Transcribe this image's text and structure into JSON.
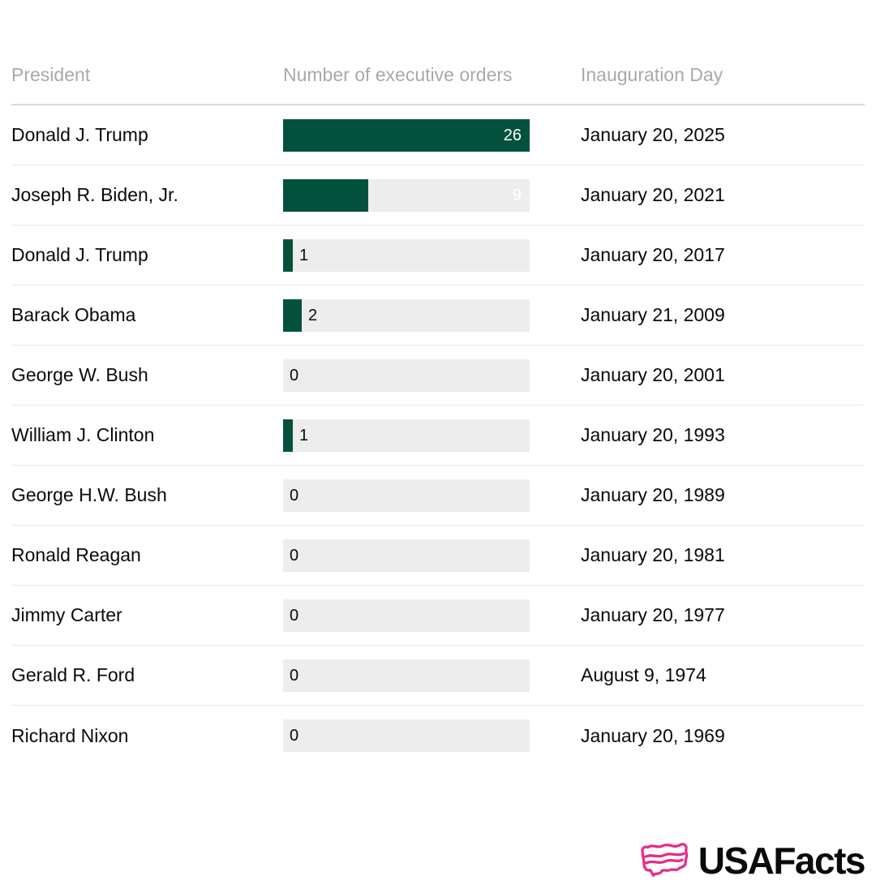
{
  "table": {
    "columns": {
      "president": "President",
      "orders": "Number of executive orders",
      "inauguration": "Inauguration Day"
    },
    "rows": [
      {
        "president": "Donald J. Trump",
        "orders": 26,
        "inauguration": "January 20, 2025"
      },
      {
        "president": "Joseph R. Biden, Jr.",
        "orders": 9,
        "inauguration": "January 20, 2021"
      },
      {
        "president": "Donald J. Trump",
        "orders": 1,
        "inauguration": "January 20, 2017"
      },
      {
        "president": "Barack Obama",
        "orders": 2,
        "inauguration": "January 21, 2009"
      },
      {
        "president": "George W. Bush",
        "orders": 0,
        "inauguration": "January 20, 2001"
      },
      {
        "president": "William J. Clinton",
        "orders": 1,
        "inauguration": "January 20, 1993"
      },
      {
        "president": "George H.W. Bush",
        "orders": 0,
        "inauguration": "January 20, 1989"
      },
      {
        "president": "Ronald Reagan",
        "orders": 0,
        "inauguration": "January 20, 1981"
      },
      {
        "president": "Jimmy Carter",
        "orders": 0,
        "inauguration": "January 20, 1977"
      },
      {
        "president": "Gerald R. Ford",
        "orders": 0,
        "inauguration": "August 9, 1974"
      },
      {
        "president": "Richard Nixon",
        "orders": 0,
        "inauguration": "January 20, 1969"
      }
    ]
  },
  "chart_data": {
    "type": "bar",
    "orientation": "horizontal",
    "categories": [
      "Donald J. Trump",
      "Joseph R. Biden, Jr.",
      "Donald J. Trump",
      "Barack Obama",
      "George W. Bush",
      "William J. Clinton",
      "George H.W. Bush",
      "Ronald Reagan",
      "Jimmy Carter",
      "Gerald R. Ford",
      "Richard Nixon"
    ],
    "values": [
      26,
      9,
      1,
      2,
      0,
      1,
      0,
      0,
      0,
      0,
      0
    ],
    "extra_column": {
      "label": "Inauguration Day",
      "values": [
        "January 20, 2025",
        "January 20, 2021",
        "January 20, 2017",
        "January 21, 2009",
        "January 20, 2001",
        "January 20, 1993",
        "January 20, 1989",
        "January 20, 1981",
        "January 20, 1977",
        "August 9, 1974",
        "January 20, 1969"
      ]
    },
    "title": "",
    "xlabel": "Number of executive orders",
    "ylabel": "President",
    "xlim": [
      0,
      26
    ],
    "grid": false,
    "legend": false,
    "bar_color": "#03513d",
    "track_color": "#ededed"
  },
  "branding": {
    "logo_text": "USAFacts",
    "logo_icon": "usa-flag-map-icon",
    "logo_color": "#e62c87"
  },
  "colors": {
    "bar_fill": "#03513d",
    "bar_track": "#ededed",
    "header_text": "#a9a9a9",
    "body_text": "#0a0a0a",
    "divider": "#e8e8e8",
    "brand_pink": "#e62c87"
  }
}
